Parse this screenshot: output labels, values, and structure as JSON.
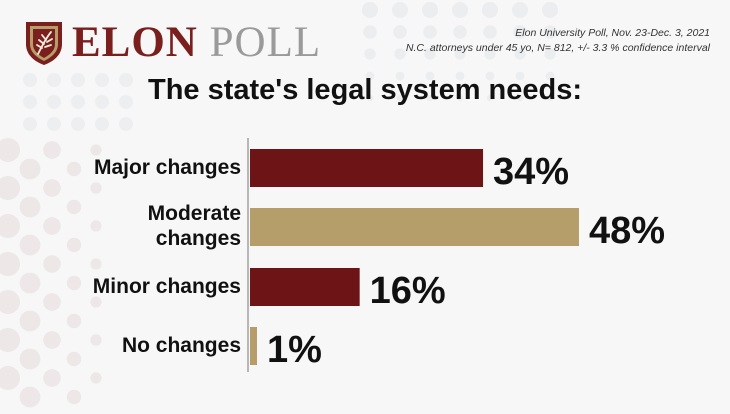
{
  "logo": {
    "word1": "ELON",
    "word2": "POLL"
  },
  "source": {
    "line1": "Elon University Poll, Nov. 23-Dec. 3, 2021",
    "line2": "N.C. attorneys under 45 yo, N= 812, +/- 3.3 % confidence interval"
  },
  "colors": {
    "maroon": "#6d1416",
    "gold": "#b59e6a"
  },
  "chart_data": {
    "type": "bar",
    "orientation": "horizontal",
    "title": "The state's legal system needs:",
    "categories": [
      "Major changes",
      "Moderate changes",
      "Minor changes",
      "No changes"
    ],
    "values": [
      34,
      48,
      16,
      1
    ],
    "value_labels": [
      "34%",
      "48%",
      "16%",
      "1%"
    ],
    "bar_colors": [
      "#6d1416",
      "#b59e6a",
      "#6d1416",
      "#b59e6a"
    ],
    "unit": "%",
    "xlim": [
      0,
      48
    ],
    "grid": false,
    "legend": "none"
  }
}
